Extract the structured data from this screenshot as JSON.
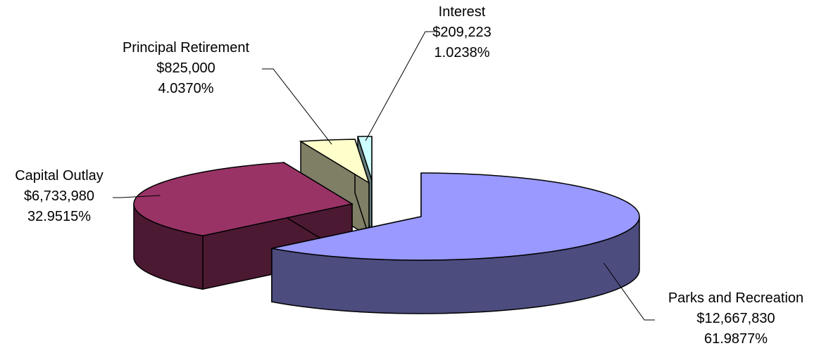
{
  "chart_data": {
    "type": "pie",
    "style": "3d-exploded",
    "legend": "none",
    "slices": [
      {
        "category": "Parks and Recreation",
        "amount": "$12,667,830",
        "percent": "61.9877%",
        "value": 12667830,
        "pct": 61.9877,
        "color": "#9999FF",
        "side_color": "#4C4C7F"
      },
      {
        "category": "Capital Outlay",
        "amount": "$6,733,980",
        "percent": "32.9515%",
        "value": 6733980,
        "pct": 32.9515,
        "color": "#993366",
        "side_color": "#4C1933"
      },
      {
        "category": "Principal Retirement",
        "amount": "$825,000",
        "percent": "4.0370%",
        "value": 825000,
        "pct": 4.037,
        "color": "#FFFFCC",
        "side_color": "#7F7F66"
      },
      {
        "category": "Interest",
        "amount": "$209,223",
        "percent": "1.0238%",
        "value": 209223,
        "pct": 1.0238,
        "color": "#CCFFFF",
        "side_color": "#667F7F"
      }
    ]
  }
}
